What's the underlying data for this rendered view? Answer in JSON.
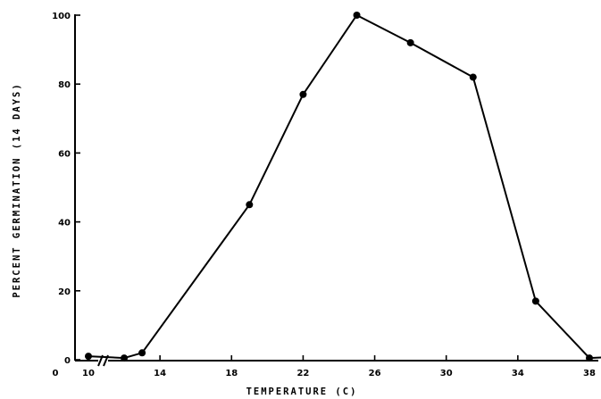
{
  "chart_data": {
    "type": "line",
    "xlabel": "TEMPERATURE (C)",
    "ylabel": "PERCENT GERMINATION (14 DAYS)",
    "xlim": [
      10,
      40
    ],
    "ylim": [
      0,
      100
    ],
    "x_origin_label": "0",
    "x_axis_break": true,
    "x_ticks": [
      10,
      14,
      18,
      22,
      26,
      30,
      34,
      38
    ],
    "y_ticks": [
      0,
      20,
      40,
      60,
      80,
      100
    ],
    "grid": false,
    "series": [
      {
        "x": [
          10,
          12,
          13,
          19,
          22,
          25,
          28,
          31.5,
          35,
          38,
          40
        ],
        "values": [
          1,
          0.5,
          2,
          45,
          77,
          100,
          92,
          82,
          17,
          0.5,
          1
        ]
      }
    ],
    "colors": {
      "line": "#000000",
      "marker": "#000000"
    }
  }
}
